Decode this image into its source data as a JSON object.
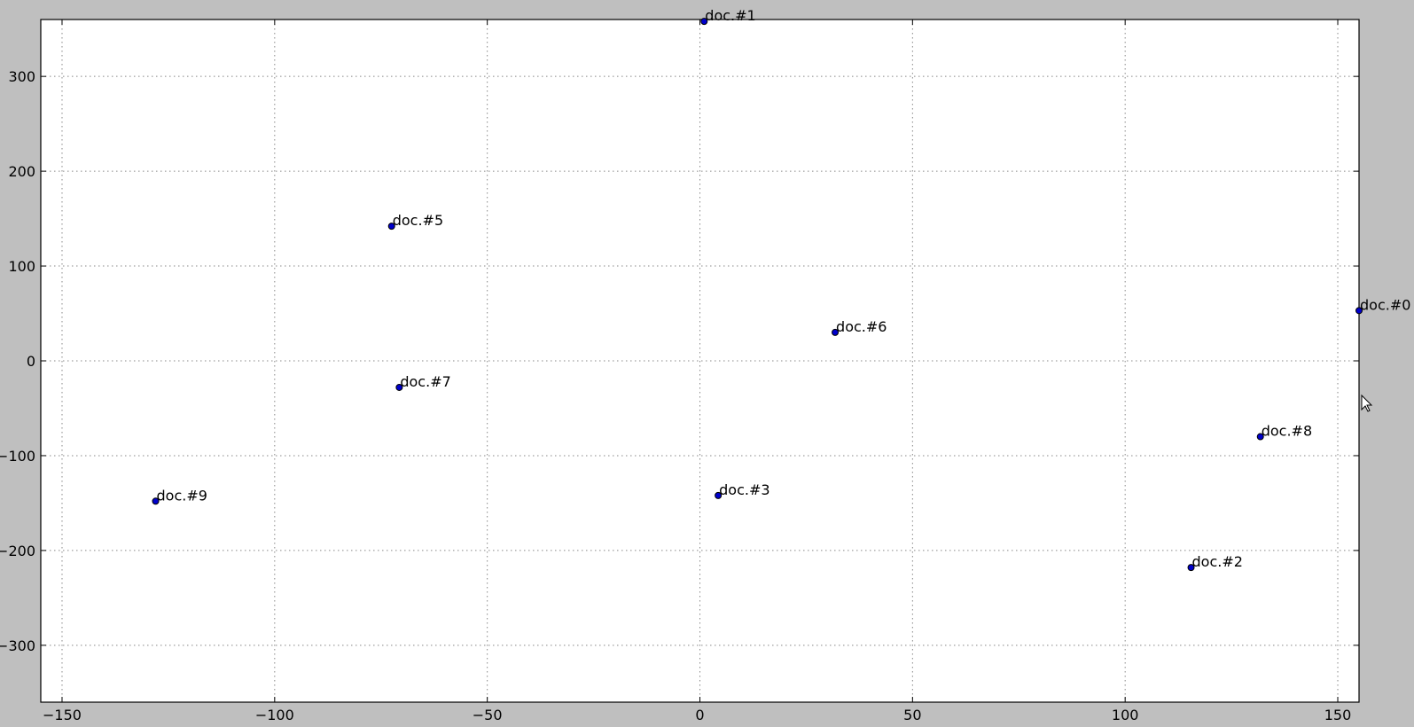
{
  "chart_data": {
    "type": "scatter",
    "title": "",
    "xlabel": "",
    "ylabel": "",
    "xlim": [
      -155,
      155
    ],
    "ylim": [
      -360,
      360
    ],
    "grid": true,
    "xticks": [
      -150,
      -100,
      -50,
      0,
      50,
      100,
      150
    ],
    "yticks": [
      300,
      200,
      100,
      0,
      -100,
      -200,
      -300
    ],
    "points": [
      {
        "label": "doc.#0",
        "x": 155,
        "y": 53
      },
      {
        "label": "doc.#1",
        "x": 1,
        "y": 358
      },
      {
        "label": "doc.#2",
        "x": 115.5,
        "y": -218
      },
      {
        "label": "doc.#3",
        "x": 4.3,
        "y": -142
      },
      {
        "label": "doc.#5",
        "x": -72.5,
        "y": 142
      },
      {
        "label": "doc.#6",
        "x": 31.8,
        "y": 30
      },
      {
        "label": "doc.#7",
        "x": -70.7,
        "y": -28
      },
      {
        "label": "doc.#8",
        "x": 131.8,
        "y": -80
      },
      {
        "label": "doc.#9",
        "x": -128,
        "y": -148
      }
    ],
    "colors": {
      "marker": "#0000cc",
      "figure_background": "#bfbfbf",
      "plot_background": "#ffffff"
    }
  },
  "cursor": {
    "icon": "mouse-pointer-icon"
  }
}
